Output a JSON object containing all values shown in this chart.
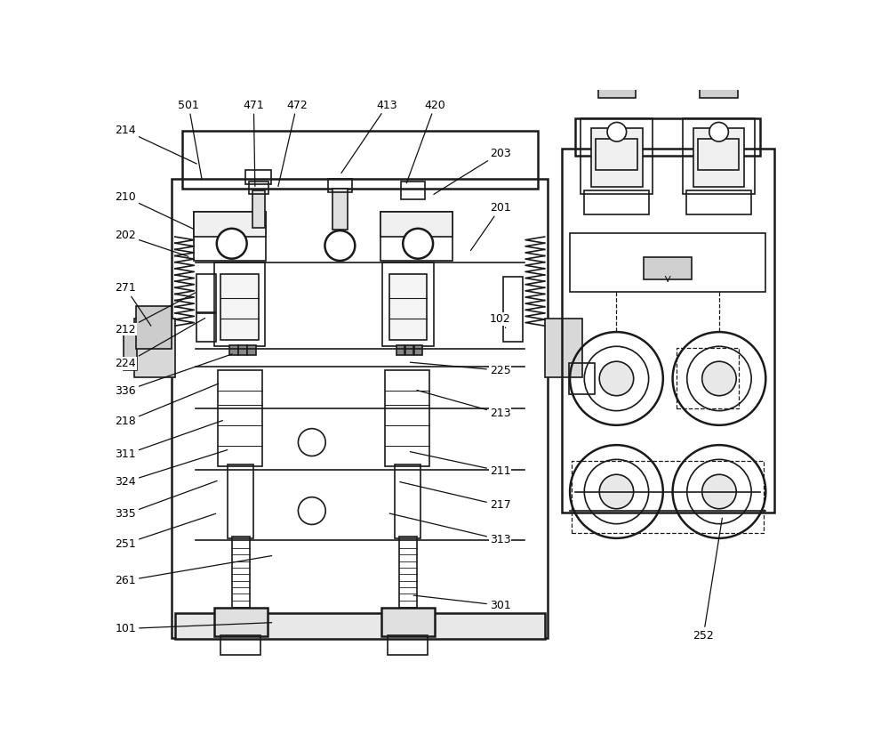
{
  "bg_color": "#ffffff",
  "line_color": "#1a1a1a",
  "lw": 1.2,
  "figsize": [
    10.0,
    8.44
  ]
}
